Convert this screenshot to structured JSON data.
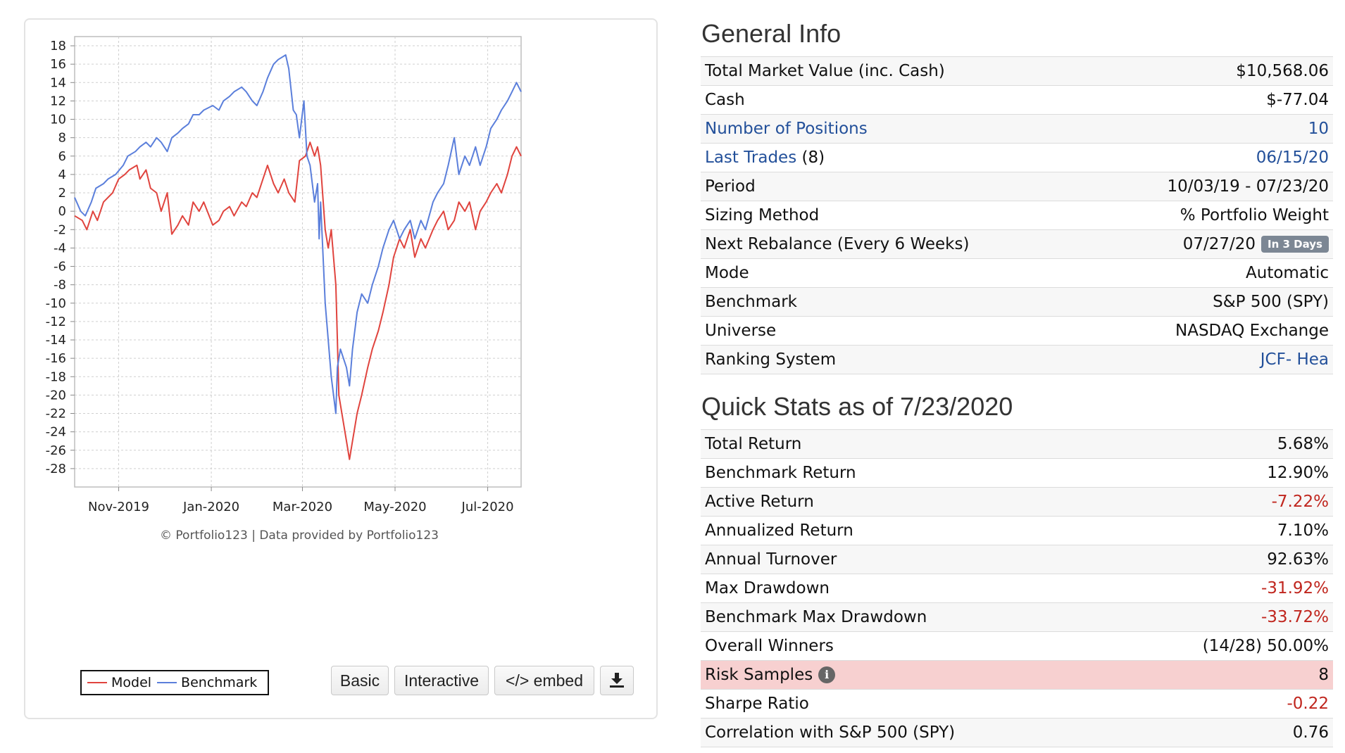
{
  "chart": {
    "credit": "© Portfolio123 | Data provided by Portfolio123",
    "legend": {
      "model": "Model",
      "benchmark": "Benchmark"
    },
    "buttons": {
      "basic": "Basic",
      "interactive": "Interactive",
      "embed": "</> embed",
      "download_icon": "download-icon"
    },
    "colors": {
      "model": "#e0443e",
      "benchmark": "#5b7fdb",
      "grid": "#cfcfcf"
    }
  },
  "chart_data": {
    "type": "line",
    "title": "",
    "xlabel": "",
    "ylabel": "",
    "x_ticks": [
      "Nov-2019",
      "Jan-2020",
      "Mar-2020",
      "May-2020",
      "Jul-2020"
    ],
    "y_ticks": [
      18,
      16,
      14,
      12,
      10,
      8,
      6,
      4,
      2,
      0,
      -2,
      -4,
      -6,
      -8,
      -10,
      -12,
      -14,
      -16,
      -18,
      -20,
      -22,
      -24,
      -26,
      -28
    ],
    "ylim": [
      -30,
      19
    ],
    "xlim": [
      "2019-10-03",
      "2020-07-23"
    ],
    "grid": true,
    "legend_position": "bottom-left",
    "series": [
      {
        "name": "Model",
        "color": "#e0443e",
        "points": [
          [
            "2019-10-03",
            -0.5
          ],
          [
            "2019-10-08",
            -1
          ],
          [
            "2019-10-11",
            -2
          ],
          [
            "2019-10-15",
            0
          ],
          [
            "2019-10-18",
            -1
          ],
          [
            "2019-10-22",
            1
          ],
          [
            "2019-10-28",
            2
          ],
          [
            "2019-11-01",
            3.5
          ],
          [
            "2019-11-05",
            4
          ],
          [
            "2019-11-08",
            4.5
          ],
          [
            "2019-11-13",
            5
          ],
          [
            "2019-11-15",
            3.5
          ],
          [
            "2019-11-19",
            4.5
          ],
          [
            "2019-11-22",
            2.5
          ],
          [
            "2019-11-26",
            2
          ],
          [
            "2019-11-29",
            0
          ],
          [
            "2019-12-03",
            2
          ],
          [
            "2019-12-06",
            -2.5
          ],
          [
            "2019-12-10",
            -1.5
          ],
          [
            "2019-12-13",
            -0.5
          ],
          [
            "2019-12-17",
            -1.5
          ],
          [
            "2019-12-20",
            1
          ],
          [
            "2019-12-24",
            0
          ],
          [
            "2019-12-27",
            1
          ],
          [
            "2020-01-02",
            -1.5
          ],
          [
            "2020-01-06",
            -1
          ],
          [
            "2020-01-09",
            0
          ],
          [
            "2020-01-13",
            0.5
          ],
          [
            "2020-01-16",
            -0.5
          ],
          [
            "2020-01-21",
            1
          ],
          [
            "2020-01-24",
            0.5
          ],
          [
            "2020-01-28",
            2
          ],
          [
            "2020-01-31",
            1.5
          ],
          [
            "2020-02-04",
            3.5
          ],
          [
            "2020-02-07",
            5
          ],
          [
            "2020-02-11",
            3
          ],
          [
            "2020-02-14",
            2
          ],
          [
            "2020-02-18",
            3.5
          ],
          [
            "2020-02-21",
            2
          ],
          [
            "2020-02-25",
            1
          ],
          [
            "2020-02-28",
            5.5
          ],
          [
            "2020-03-03",
            6
          ],
          [
            "2020-03-06",
            7.5
          ],
          [
            "2020-03-09",
            6
          ],
          [
            "2020-03-11",
            7
          ],
          [
            "2020-03-13",
            5
          ],
          [
            "2020-03-16",
            -2
          ],
          [
            "2020-03-18",
            -4
          ],
          [
            "2020-03-20",
            -2
          ],
          [
            "2020-03-23",
            -8
          ],
          [
            "2020-03-24",
            -14
          ],
          [
            "2020-03-25",
            -20
          ],
          [
            "2020-03-27",
            -22
          ],
          [
            "2020-03-30",
            -25
          ],
          [
            "2020-04-01",
            -27
          ],
          [
            "2020-04-03",
            -25
          ],
          [
            "2020-04-06",
            -22
          ],
          [
            "2020-04-09",
            -20
          ],
          [
            "2020-04-13",
            -17
          ],
          [
            "2020-04-16",
            -15
          ],
          [
            "2020-04-20",
            -13
          ],
          [
            "2020-04-23",
            -11
          ],
          [
            "2020-04-27",
            -8
          ],
          [
            "2020-04-30",
            -5
          ],
          [
            "2020-05-04",
            -3
          ],
          [
            "2020-05-07",
            -4
          ],
          [
            "2020-05-11",
            -2
          ],
          [
            "2020-05-14",
            -5
          ],
          [
            "2020-05-18",
            -3
          ],
          [
            "2020-05-21",
            -4
          ],
          [
            "2020-05-26",
            -2
          ],
          [
            "2020-05-29",
            -1
          ],
          [
            "2020-06-02",
            0
          ],
          [
            "2020-06-05",
            -2
          ],
          [
            "2020-06-09",
            -1
          ],
          [
            "2020-06-12",
            1
          ],
          [
            "2020-06-16",
            0
          ],
          [
            "2020-06-19",
            1
          ],
          [
            "2020-06-23",
            -2
          ],
          [
            "2020-06-26",
            0
          ],
          [
            "2020-06-30",
            1
          ],
          [
            "2020-07-03",
            2
          ],
          [
            "2020-07-07",
            3
          ],
          [
            "2020-07-10",
            2
          ],
          [
            "2020-07-14",
            4
          ],
          [
            "2020-07-17",
            6
          ],
          [
            "2020-07-20",
            7
          ],
          [
            "2020-07-23",
            6
          ]
        ]
      },
      {
        "name": "Benchmark",
        "color": "#5b7fdb",
        "points": [
          [
            "2019-10-03",
            1.5
          ],
          [
            "2019-10-07",
            0
          ],
          [
            "2019-10-10",
            -0.5
          ],
          [
            "2019-10-14",
            1
          ],
          [
            "2019-10-17",
            2.5
          ],
          [
            "2019-10-22",
            3
          ],
          [
            "2019-10-25",
            3.5
          ],
          [
            "2019-10-30",
            4
          ],
          [
            "2019-11-04",
            5
          ],
          [
            "2019-11-07",
            6
          ],
          [
            "2019-11-12",
            6.5
          ],
          [
            "2019-11-15",
            7
          ],
          [
            "2019-11-19",
            7.5
          ],
          [
            "2019-11-22",
            7
          ],
          [
            "2019-11-26",
            8
          ],
          [
            "2019-11-29",
            7.5
          ],
          [
            "2019-12-03",
            6.5
          ],
          [
            "2019-12-06",
            8
          ],
          [
            "2019-12-10",
            8.5
          ],
          [
            "2019-12-13",
            9
          ],
          [
            "2019-12-17",
            9.5
          ],
          [
            "2019-12-20",
            10.5
          ],
          [
            "2019-12-24",
            10.5
          ],
          [
            "2019-12-27",
            11
          ],
          [
            "2020-01-02",
            11.5
          ],
          [
            "2020-01-06",
            11
          ],
          [
            "2020-01-09",
            12
          ],
          [
            "2020-01-13",
            12.5
          ],
          [
            "2020-01-16",
            13
          ],
          [
            "2020-01-21",
            13.5
          ],
          [
            "2020-01-24",
            13
          ],
          [
            "2020-01-28",
            12
          ],
          [
            "2020-01-31",
            11.5
          ],
          [
            "2020-02-04",
            13
          ],
          [
            "2020-02-07",
            14.5
          ],
          [
            "2020-02-11",
            16
          ],
          [
            "2020-02-14",
            16.5
          ],
          [
            "2020-02-19",
            17
          ],
          [
            "2020-02-21",
            15.5
          ],
          [
            "2020-02-24",
            11
          ],
          [
            "2020-02-26",
            10.5
          ],
          [
            "2020-02-28",
            8
          ],
          [
            "2020-03-02",
            12
          ],
          [
            "2020-03-04",
            6
          ],
          [
            "2020-03-06",
            5
          ],
          [
            "2020-03-09",
            1
          ],
          [
            "2020-03-11",
            3
          ],
          [
            "2020-03-12",
            -3
          ],
          [
            "2020-03-13",
            1
          ],
          [
            "2020-03-16",
            -10
          ],
          [
            "2020-03-18",
            -14
          ],
          [
            "2020-03-20",
            -18
          ],
          [
            "2020-03-23",
            -22
          ],
          [
            "2020-03-24",
            -17
          ],
          [
            "2020-03-26",
            -15
          ],
          [
            "2020-03-30",
            -17
          ],
          [
            "2020-04-01",
            -19
          ],
          [
            "2020-04-03",
            -15
          ],
          [
            "2020-04-06",
            -11
          ],
          [
            "2020-04-09",
            -9
          ],
          [
            "2020-04-13",
            -10
          ],
          [
            "2020-04-16",
            -8
          ],
          [
            "2020-04-20",
            -6
          ],
          [
            "2020-04-23",
            -4
          ],
          [
            "2020-04-27",
            -2
          ],
          [
            "2020-04-30",
            -1
          ],
          [
            "2020-05-04",
            -3
          ],
          [
            "2020-05-07",
            -2
          ],
          [
            "2020-05-11",
            -1
          ],
          [
            "2020-05-14",
            -3
          ],
          [
            "2020-05-18",
            -1
          ],
          [
            "2020-05-21",
            -2
          ],
          [
            "2020-05-26",
            1
          ],
          [
            "2020-05-29",
            2
          ],
          [
            "2020-06-02",
            3
          ],
          [
            "2020-06-05",
            5
          ],
          [
            "2020-06-09",
            8
          ],
          [
            "2020-06-12",
            4
          ],
          [
            "2020-06-16",
            6
          ],
          [
            "2020-06-19",
            5
          ],
          [
            "2020-06-23",
            7
          ],
          [
            "2020-06-26",
            5
          ],
          [
            "2020-06-30",
            7
          ],
          [
            "2020-07-03",
            9
          ],
          [
            "2020-07-07",
            10
          ],
          [
            "2020-07-10",
            11
          ],
          [
            "2020-07-14",
            12
          ],
          [
            "2020-07-17",
            13
          ],
          [
            "2020-07-20",
            14
          ],
          [
            "2020-07-23",
            13
          ]
        ]
      }
    ]
  },
  "general": {
    "title": "General Info",
    "rows": [
      {
        "label": "Total Market Value (inc. Cash)",
        "value": "$10,568.06"
      },
      {
        "label": "Cash",
        "value": "$-77.04"
      },
      {
        "label": "Number of Positions",
        "value": "10"
      },
      {
        "label": "Last Trades",
        "label_suffix": " (8)",
        "value": "06/15/20"
      },
      {
        "label": "Period",
        "value": "10/03/19 - 07/23/20"
      },
      {
        "label": "Sizing Method",
        "value": "% Portfolio Weight"
      },
      {
        "label": "Next Rebalance (Every 6 Weeks)",
        "value": "07/27/20",
        "badge": "In 3 Days"
      },
      {
        "label": "Mode",
        "value": "Automatic"
      },
      {
        "label": "Benchmark",
        "value": "S&P 500 (SPY)"
      },
      {
        "label": "Universe",
        "value": "NASDAQ Exchange"
      },
      {
        "label": "Ranking System",
        "value": "JCF- Hea"
      }
    ]
  },
  "quick_stats": {
    "title": "Quick Stats as of 7/23/2020",
    "rows": [
      {
        "label": "Total Return",
        "value": "5.68%"
      },
      {
        "label": "Benchmark Return",
        "value": "12.90%"
      },
      {
        "label": "Active Return",
        "value": "-7.22%"
      },
      {
        "label": "Annualized Return",
        "value": "7.10%"
      },
      {
        "label": "Annual Turnover",
        "value": "92.63%"
      },
      {
        "label": "Max Drawdown",
        "value": "-31.92%"
      },
      {
        "label": "Benchmark Max Drawdown",
        "value": "-33.72%"
      },
      {
        "label": "Overall Winners",
        "value": "(14/28) 50.00%"
      },
      {
        "label": "Risk Samples",
        "value": "8",
        "icon": "info-icon"
      },
      {
        "label": "Sharpe Ratio",
        "value": "-0.22"
      },
      {
        "label": "Correlation with S&P 500 (SPY)",
        "value": "0.76"
      }
    ]
  },
  "colors": {
    "link": "#23509a",
    "negative": "#c0261e",
    "highlight": "#f7d0d0",
    "badge": "#7c8794"
  }
}
